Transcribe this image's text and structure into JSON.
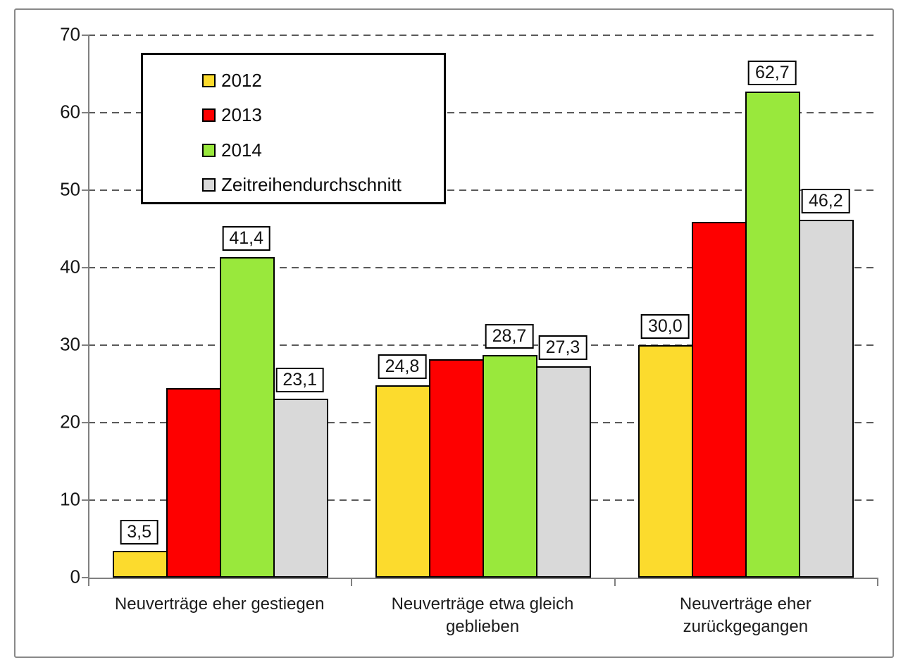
{
  "chart_data": {
    "type": "bar",
    "title": "",
    "xlabel": "",
    "ylabel": "",
    "ylim": [
      0,
      70
    ],
    "yticks": [
      0,
      10,
      20,
      30,
      40,
      50,
      60,
      70
    ],
    "grid": "dashed-horizontal",
    "legend_position": "top-left-inside",
    "decimal_separator": ",",
    "categories": [
      "Neuverträge eher gestiegen",
      "Neuverträge etwa gleich\ngeblieben",
      "Neuverträge eher\nzurückgegangen"
    ],
    "series": [
      {
        "name": "2012",
        "color": "#FCDB2D",
        "values": [
          3.5,
          24.8,
          30.0
        ],
        "labels": [
          "3,5",
          "24,8",
          "30,0"
        ]
      },
      {
        "name": "2013",
        "color": "#FE0000",
        "values": [
          24.5,
          28.2,
          45.9
        ],
        "labels": [
          null,
          null,
          null
        ]
      },
      {
        "name": "2014",
        "color": "#99E83C",
        "values": [
          41.4,
          28.7,
          62.7
        ],
        "labels": [
          "41,4",
          "28,7",
          "62,7"
        ]
      },
      {
        "name": "Zeitreihendurchschnitt",
        "color": "#D9D9D9",
        "values": [
          23.1,
          27.3,
          46.2
        ],
        "labels": [
          "23,1",
          "27,3",
          "46,2"
        ]
      }
    ],
    "colors": {
      "grid": "#5a5a5a",
      "axis": "#808080",
      "bar_border": "#000000",
      "frame_border": "#898989",
      "background": "#FFFFFF"
    }
  }
}
